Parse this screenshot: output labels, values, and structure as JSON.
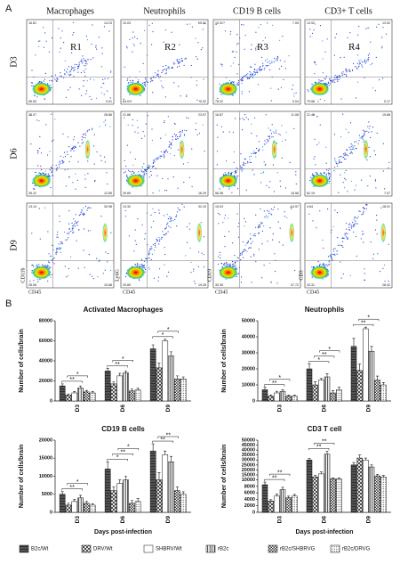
{
  "flow_panel": {
    "label": "A",
    "columns": [
      "Macrophages",
      "Neutrophils",
      "CD19 B cells",
      "CD3+ T cells"
    ],
    "gates": [
      "R1",
      "R2",
      "R3",
      "R4"
    ],
    "y_axis_labels": [
      "CD11b",
      "Ly6G",
      "CD19",
      "CD3"
    ],
    "x_axis_label": "CD45",
    "rows": [
      {
        "label": "D3",
        "cells": [
          [
            "16.81",
            "14.23",
            "65.53",
            "0.01"
          ],
          [
            "10.03",
            "15.52",
            "64.01",
            "0.02"
          ],
          [
            "10.31",
            "7.05",
            "78.22",
            "0.04"
          ],
          [
            "13.92",
            "13.92",
            "79.58",
            "0.17"
          ]
        ]
      },
      {
        "label": "D6",
        "cells": [
          [
            "23.07",
            "28.86",
            "35.22",
            "12.89"
          ],
          [
            "21.86",
            "23.97",
            "29.69",
            "16.29"
          ],
          [
            "16.87",
            "11.08",
            "56.38",
            "15.56"
          ],
          [
            "21.46",
            "19.68",
            "62.19",
            "7.07"
          ]
        ]
      },
      {
        "label": "D9",
        "cells": [
          [
            "13.14",
            "30.98",
            "28.08",
            "10.68"
          ],
          [
            "13.32",
            "32.10",
            "20.89",
            "19.26"
          ],
          [
            "15.03",
            "14.57",
            "30.35",
            "37.72"
          ],
          [
            "4.64",
            "18.01",
            "33.31",
            "28.42"
          ]
        ]
      }
    ]
  },
  "panel_b_label": "B",
  "chart_data": [
    {
      "type": "bar",
      "title": "Activated Macrophages",
      "y_label": "Number of cells/brain",
      "categories": [
        "D3",
        "D6",
        "D9"
      ],
      "ylim": [
        0,
        80000
      ],
      "yticks": [
        0,
        20000,
        40000,
        60000,
        80000
      ],
      "series": [
        {
          "name": "B2c/Wt",
          "color": "#555555",
          "pattern": "horizontal",
          "values": [
            15000,
            30000,
            52000
          ],
          "errors": [
            2000,
            2500,
            4000
          ]
        },
        {
          "name": "DRV/Wt",
          "color": "#ffffff",
          "pattern": "crosshatch",
          "values": [
            6000,
            17000,
            33000
          ],
          "errors": [
            1000,
            2000,
            5000
          ]
        },
        {
          "name": "SHBRV/Wt",
          "color": "#ffffff",
          "pattern": "none",
          "values": [
            8000,
            25000,
            60000
          ],
          "errors": [
            1500,
            2500,
            1500
          ]
        },
        {
          "name": "rB2c",
          "color": "#ffffff",
          "pattern": "vertical",
          "values": [
            13000,
            28000,
            45000
          ],
          "errors": [
            2000,
            2000,
            4000
          ]
        },
        {
          "name": "rB2c/SHBRVG",
          "color": "#ffffff",
          "pattern": "checker",
          "values": [
            9000,
            10000,
            22000
          ],
          "errors": [
            1500,
            2000,
            3000
          ]
        },
        {
          "name": "rB2c/DRVG",
          "color": "#ffffff",
          "pattern": "dots",
          "values": [
            8000,
            11000,
            22000
          ],
          "errors": [
            1500,
            2000,
            2000
          ]
        }
      ],
      "annotations": [
        {
          "text": "**",
          "category": 0
        },
        {
          "text": "*",
          "category": 0
        },
        {
          "text": "**",
          "category": 1
        },
        {
          "text": "*",
          "category": 1
        },
        {
          "text": "*",
          "category": 2
        },
        {
          "text": "*",
          "category": 2
        }
      ]
    },
    {
      "type": "bar",
      "title": "Neutrophils",
      "y_label": "Number of cells/brain",
      "categories": [
        "D3",
        "D6",
        "D9"
      ],
      "ylim": [
        0,
        50000
      ],
      "yticks": [
        0,
        10000,
        20000,
        30000,
        40000,
        50000
      ],
      "series": [
        {
          "values": [
            7000,
            20000,
            34000
          ],
          "errors": [
            1500,
            3000,
            5000
          ]
        },
        {
          "values": [
            3000,
            10000,
            19000
          ],
          "errors": [
            800,
            2000,
            4000
          ]
        },
        {
          "values": [
            5000,
            13000,
            45000
          ],
          "errors": [
            1000,
            1000,
            1000
          ]
        },
        {
          "values": [
            6000,
            15000,
            31000
          ],
          "errors": [
            1000,
            2000,
            3000
          ]
        },
        {
          "values": [
            3000,
            5000,
            13000
          ],
          "errors": [
            700,
            1500,
            2500
          ]
        },
        {
          "values": [
            3000,
            7000,
            10000
          ],
          "errors": [
            600,
            1500,
            1500
          ]
        }
      ],
      "annotations": [
        {
          "text": "**",
          "category": 0
        },
        {
          "text": "*",
          "category": 0
        },
        {
          "text": "*",
          "category": 1
        },
        {
          "text": "**",
          "category": 1
        },
        {
          "text": "*",
          "category": 1
        },
        {
          "text": "**",
          "category": 2
        },
        {
          "text": "*",
          "category": 2
        }
      ]
    },
    {
      "type": "bar",
      "title": "CD19 B cells",
      "y_label": "Number of cells/brain",
      "x_label": "Days post-infection",
      "categories": [
        "D3",
        "D6",
        "D9"
      ],
      "ylim": [
        0,
        20000
      ],
      "yticks": [
        0,
        5000,
        10000,
        15000,
        20000
      ],
      "series": [
        {
          "values": [
            5000,
            12000,
            17000
          ],
          "errors": [
            800,
            2000,
            2000
          ]
        },
        {
          "values": [
            2000,
            6000,
            9000
          ],
          "errors": [
            500,
            1000,
            2000
          ]
        },
        {
          "values": [
            3000,
            8000,
            16000
          ],
          "errors": [
            600,
            1000,
            1000
          ]
        },
        {
          "values": [
            4000,
            9000,
            14000
          ],
          "errors": [
            700,
            1000,
            1500
          ]
        },
        {
          "values": [
            2500,
            2500,
            6000
          ],
          "errors": [
            500,
            800,
            1000
          ]
        },
        {
          "values": [
            2000,
            3000,
            5000
          ],
          "errors": [
            400,
            800,
            700
          ]
        }
      ],
      "annotations": [
        {
          "text": "**",
          "category": 0
        },
        {
          "text": "*",
          "category": 0
        },
        {
          "text": "*",
          "category": 1
        },
        {
          "text": "**",
          "category": 1
        },
        {
          "text": "*",
          "category": 1
        },
        {
          "text": "**",
          "category": 2
        },
        {
          "text": "**",
          "category": 2
        }
      ]
    },
    {
      "type": "bar",
      "title": "CD3 T cell",
      "y_label": "Number of cells/brain",
      "x_label": "Days post-infection",
      "categories": [
        "D3",
        "D6",
        "D9"
      ],
      "ylim": [
        0,
        50000
      ],
      "y_break": 10000,
      "yticks": [
        0,
        2000,
        4000,
        6000,
        8000,
        10000,
        15000,
        20000,
        25000,
        30000,
        35000,
        40000,
        45000,
        50000
      ],
      "series": [
        {
          "values": [
            8500,
            30000,
            25000
          ],
          "errors": [
            800,
            1500,
            2500
          ]
        },
        {
          "values": [
            3500,
            13000,
            32000
          ],
          "errors": [
            400,
            1500,
            3000
          ]
        },
        {
          "values": [
            5000,
            16000,
            30000
          ],
          "errors": [
            600,
            2000,
            2000
          ]
        },
        {
          "values": [
            7000,
            36000,
            23000
          ],
          "errors": [
            700,
            3000,
            2000
          ]
        },
        {
          "values": [
            4500,
            11000,
            14000
          ],
          "errors": [
            500,
            1000,
            1500
          ]
        },
        {
          "values": [
            5000,
            11000,
            13000
          ],
          "errors": [
            500,
            1000,
            1500
          ]
        }
      ],
      "annotations": [
        {
          "text": "**",
          "category": 0
        },
        {
          "text": "**",
          "category": 0
        },
        {
          "text": "**",
          "category": 1
        },
        {
          "text": "**",
          "category": 1
        }
      ]
    }
  ]
}
